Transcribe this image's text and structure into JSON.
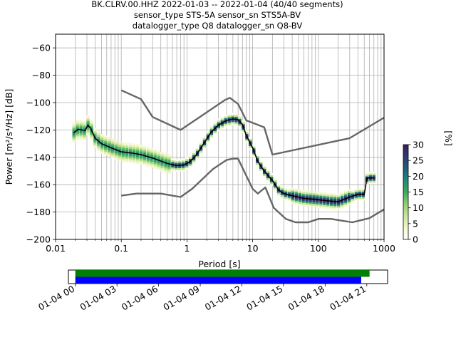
{
  "title_lines": [
    "BK.CLRV.00.HHZ   2022-01-03 -- 2022-01-04  (40/40 segments)",
    "sensor_type STS-5A sensor_sn STS5A-BV",
    "datalogger_type Q8 datalogger_sn Q8-BV"
  ],
  "chart_data": {
    "type": "heatmap",
    "xlabel": "Period [s]",
    "ylabel": "Power [m²/s⁴/Hz] [dB]",
    "xscale": "log",
    "xlim": [
      0.01,
      1000
    ],
    "ylim": [
      -200,
      -50
    ],
    "x_ticks": [
      0.01,
      0.1,
      1,
      10,
      100,
      1000
    ],
    "x_tick_labels": [
      "0.01",
      "0.1",
      "1",
      "10",
      "100",
      "1000"
    ],
    "y_ticks": [
      -200,
      -180,
      -160,
      -140,
      -120,
      -100,
      -80,
      -60
    ],
    "y_tick_labels": [
      "−200",
      "−180",
      "−160",
      "−140",
      "−120",
      "−100",
      "−80",
      "−60"
    ],
    "grid": true,
    "colorbar": {
      "label": "[%]",
      "range": [
        0,
        30
      ],
      "ticks": [
        0,
        5,
        10,
        15,
        20,
        25,
        30
      ],
      "tick_labels": [
        "0",
        "5",
        "10",
        "15",
        "20",
        "25",
        "30"
      ],
      "colors": [
        "#ffffff",
        "#f4f6c8",
        "#c8e69a",
        "#8fd06a",
        "#3aa95c",
        "#1f8a78",
        "#1d5f7a",
        "#2e3a73",
        "#3a1e5a"
      ]
    },
    "series": [
      {
        "role": "mode",
        "color": "#000000",
        "x": [
          0.019,
          0.022,
          0.025,
          0.028,
          0.031,
          0.034,
          0.04,
          0.05,
          0.07,
          0.1,
          0.15,
          0.2,
          0.3,
          0.5,
          0.7,
          0.9,
          1.1,
          1.4,
          1.8,
          2.3,
          3,
          4,
          5,
          6,
          7,
          8,
          10,
          12,
          15,
          20,
          25,
          30,
          40,
          60,
          80,
          100,
          150,
          200,
          300,
          350,
          400,
          500,
          550,
          700
        ],
        "y": [
          -122,
          -119.5,
          -120,
          -120.5,
          -116.5,
          -118.5,
          -126,
          -130,
          -133,
          -136,
          -137,
          -138,
          -140.5,
          -144.5,
          -146,
          -145.5,
          -143.5,
          -138,
          -130,
          -122,
          -116.5,
          -113,
          -112,
          -112.5,
          -116,
          -124,
          -133,
          -143,
          -150,
          -157,
          -164,
          -166.5,
          -168,
          -170,
          -170.5,
          -171,
          -172,
          -172.5,
          -169,
          -168,
          -167,
          -167,
          -155,
          -155
        ]
      },
      {
        "role": "noise-model-high",
        "color": "#666666",
        "x": [
          0.1,
          0.2,
          0.3,
          0.8,
          3.8,
          4.5,
          6,
          8,
          15,
          20,
          300,
          1000
        ],
        "y": [
          -91,
          -97.5,
          -110.5,
          -120,
          -98,
          -96.5,
          -101,
          -113,
          -118,
          -138,
          -126,
          -111
        ]
      },
      {
        "role": "noise-model-low",
        "color": "#666666",
        "x": [
          0.1,
          0.17,
          0.4,
          0.8,
          1.2,
          2.5,
          4,
          5,
          6,
          10,
          12,
          15.6,
          21,
          32,
          45,
          70,
          101,
          154,
          328,
          600,
          1000
        ],
        "y": [
          -168,
          -166.5,
          -166.5,
          -169,
          -163,
          -148.5,
          -142,
          -141,
          -141,
          -163,
          -166.5,
          -162,
          -177,
          -185,
          -187.5,
          -187.5,
          -185,
          -185,
          -187.5,
          -184.5,
          -178
        ]
      }
    ]
  },
  "timeline": {
    "tick_labels": [
      "01-04 00",
      "01-04 03",
      "01-04 06",
      "01-04 09",
      "01-04 12",
      "01-04 15",
      "01-04 18",
      "01-04 21"
    ],
    "tick_hours": [
      0,
      3,
      6,
      9,
      12,
      15,
      18,
      21
    ],
    "range_hours": [
      -0.5,
      22.5
    ],
    "bars": [
      {
        "color": "#008000",
        "start_hour": 0,
        "end_hour": 21.2
      },
      {
        "color": "#0000ff",
        "start_hour": 0,
        "end_hour": 20.6
      }
    ]
  }
}
